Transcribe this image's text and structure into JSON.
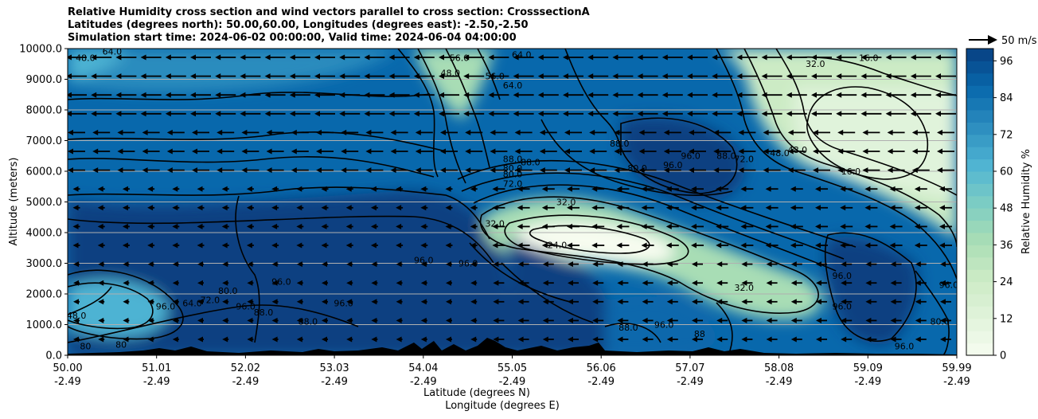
{
  "chart_data": {
    "type": "heatmap",
    "title_lines": [
      "Relative Humidity cross section and wind vectors parallel to cross section: CrosssectionA",
      "Latitudes (degrees north): 50.00,60.00, Longitudes (degrees east): -2.50,-2.50",
      "Simulation start time: 2024-06-02 00:00:00, Valid time: 2024-06-04 04:00:00"
    ],
    "xlabel_line1": "Latitude (degrees N)",
    "xlabel_line2": "Longitude (degrees E)",
    "ylabel": "Altitude (meters)",
    "colorbar_label": "Relative Humidity %",
    "quiver_key_label": "50 m/s",
    "x_tick_lat": [
      "50.00",
      "51.01",
      "52.02",
      "53.03",
      "54.04",
      "55.05",
      "56.06",
      "57.07",
      "58.08",
      "59.09",
      "59.99"
    ],
    "x_tick_lon": [
      "-2.49",
      "-2.49",
      "-2.49",
      "-2.49",
      "-2.49",
      "-2.49",
      "-2.49",
      "-2.49",
      "-2.49",
      "-2.49",
      "-2.49"
    ],
    "y_ticks": [
      "0.0",
      "1000.0",
      "2000.0",
      "3000.0",
      "4000.0",
      "5000.0",
      "6000.0",
      "7000.0",
      "8000.0",
      "9000.0",
      "10000.0"
    ],
    "y_values": [
      0,
      1000,
      2000,
      3000,
      4000,
      5000,
      6000,
      7000,
      8000,
      9000,
      10000
    ],
    "ylim": [
      0,
      10000
    ],
    "xlim": [
      50.0,
      59.99
    ],
    "colorbar_ticks": [
      "0",
      "12",
      "24",
      "36",
      "48",
      "60",
      "72",
      "84",
      "96"
    ],
    "colorbar_values": [
      0,
      12,
      24,
      36,
      48,
      60,
      72,
      84,
      96
    ],
    "colorbar_range": [
      0,
      100
    ],
    "grid": "horizontal",
    "contour_labels": [
      {
        "text": "48.0",
        "x": 50.2,
        "y": 9600
      },
      {
        "text": "64.0",
        "x": 50.5,
        "y": 9800
      },
      {
        "text": "56.0",
        "x": 54.4,
        "y": 9600
      },
      {
        "text": "64.0",
        "x": 55.1,
        "y": 9700
      },
      {
        "text": "48.0",
        "x": 54.3,
        "y": 9100
      },
      {
        "text": "56.0",
        "x": 54.8,
        "y": 9000
      },
      {
        "text": "64.0",
        "x": 55.0,
        "y": 8700
      },
      {
        "text": "32.0",
        "x": 58.4,
        "y": 9400
      },
      {
        "text": "16.0",
        "x": 59.0,
        "y": 9600
      },
      {
        "text": "88.0",
        "x": 55.0,
        "y": 6300
      },
      {
        "text": "88.0",
        "x": 55.2,
        "y": 6200
      },
      {
        "text": "80.0",
        "x": 55.0,
        "y": 6000
      },
      {
        "text": "88.0",
        "x": 56.2,
        "y": 6800
      },
      {
        "text": "80.0",
        "x": 56.4,
        "y": 6000
      },
      {
        "text": "96.0",
        "x": 56.8,
        "y": 6100
      },
      {
        "text": "96.0",
        "x": 57.0,
        "y": 6400
      },
      {
        "text": "88.0",
        "x": 57.4,
        "y": 6400
      },
      {
        "text": "72.0",
        "x": 57.6,
        "y": 6300
      },
      {
        "text": "48.0",
        "x": 58.0,
        "y": 6500
      },
      {
        "text": "48.0",
        "x": 58.2,
        "y": 6600
      },
      {
        "text": "16.0",
        "x": 58.8,
        "y": 5900
      },
      {
        "text": "80.0",
        "x": 55.0,
        "y": 5800
      },
      {
        "text": "72.0",
        "x": 55.0,
        "y": 5500
      },
      {
        "text": "32.0",
        "x": 55.6,
        "y": 4900
      },
      {
        "text": "32.0",
        "x": 54.8,
        "y": 4200
      },
      {
        "text": "24.0",
        "x": 55.5,
        "y": 3500
      },
      {
        "text": "96.0",
        "x": 54.0,
        "y": 3000
      },
      {
        "text": "96.0",
        "x": 54.5,
        "y": 2900
      },
      {
        "text": "32.0",
        "x": 57.6,
        "y": 2100
      },
      {
        "text": "96.0",
        "x": 58.7,
        "y": 2500
      },
      {
        "text": "96.0",
        "x": 58.7,
        "y": 1500
      },
      {
        "text": "80.0",
        "x": 51.8,
        "y": 2000
      },
      {
        "text": "96.0",
        "x": 51.1,
        "y": 1500
      },
      {
        "text": "64.0",
        "x": 51.4,
        "y": 1600
      },
      {
        "text": "72.0",
        "x": 51.6,
        "y": 1700
      },
      {
        "text": "96.0",
        "x": 52.0,
        "y": 1500
      },
      {
        "text": "96.0",
        "x": 52.4,
        "y": 2300
      },
      {
        "text": "88.0",
        "x": 52.2,
        "y": 1300
      },
      {
        "text": "88.0",
        "x": 52.7,
        "y": 1000
      },
      {
        "text": "96.0",
        "x": 53.1,
        "y": 1600
      },
      {
        "text": "48.0",
        "x": 50.1,
        "y": 1200
      },
      {
        "text": "80",
        "x": 50.2,
        "y": 200
      },
      {
        "text": "80",
        "x": 50.6,
        "y": 250
      },
      {
        "text": "88.0",
        "x": 56.3,
        "y": 800
      },
      {
        "text": "96.0",
        "x": 56.7,
        "y": 900
      },
      {
        "text": "88",
        "x": 57.1,
        "y": 600
      },
      {
        "text": "96.0",
        "x": 59.4,
        "y": 200
      },
      {
        "text": "96.0",
        "x": 59.9,
        "y": 2200
      },
      {
        "text": "80.0",
        "x": 59.8,
        "y": 1000
      }
    ],
    "colors": {
      "colormap": [
        "#f7fcf0",
        "#e0f3db",
        "#ccebc5",
        "#a8ddb5",
        "#7bccc4",
        "#4eb3d3",
        "#2b8cbe",
        "#0868ac",
        "#084081"
      ],
      "contour": "#000000",
      "terrain": "#000000",
      "grid": "#b0b0b0"
    }
  }
}
